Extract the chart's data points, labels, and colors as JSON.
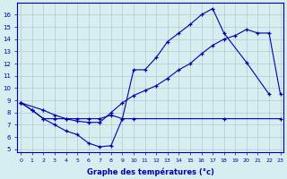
{
  "line1_x": [
    0,
    1,
    2,
    3,
    4,
    5,
    6,
    7,
    8,
    9,
    10,
    11,
    12,
    13,
    14,
    15,
    16,
    17,
    18,
    20,
    22
  ],
  "line1_y": [
    8.8,
    8.2,
    7.5,
    7.0,
    6.5,
    6.2,
    5.5,
    5.2,
    5.3,
    7.5,
    11.5,
    11.5,
    12.5,
    13.8,
    14.5,
    15.2,
    16.0,
    16.5,
    14.5,
    12.1,
    9.5
  ],
  "line2_x": [
    0,
    2,
    3,
    4,
    5,
    6,
    7,
    8,
    9,
    10,
    11,
    12,
    13,
    14,
    15,
    16,
    17,
    18,
    19,
    20,
    21,
    22,
    23
  ],
  "line2_y": [
    8.8,
    8.2,
    7.8,
    7.5,
    7.3,
    7.2,
    7.2,
    8.0,
    8.8,
    9.4,
    9.8,
    10.2,
    10.8,
    11.5,
    12.0,
    12.8,
    13.5,
    14.0,
    14.3,
    14.8,
    14.5,
    14.5,
    9.5
  ],
  "line3_x": [
    0,
    1,
    2,
    3,
    4,
    5,
    6,
    7,
    8,
    9,
    10,
    18,
    23
  ],
  "line3_y": [
    8.8,
    8.2,
    7.5,
    7.5,
    7.5,
    7.5,
    7.5,
    7.5,
    7.8,
    7.5,
    7.5,
    7.5,
    7.5
  ],
  "bg_color": "#d6eef0",
  "line_color": "#0000aa",
  "grid_color": "#aacccc",
  "xlabel": "Graphe des températures (°c)",
  "ylabel_ticks": [
    5,
    6,
    7,
    8,
    9,
    10,
    11,
    12,
    13,
    14,
    15,
    16
  ],
  "ylim": [
    4.8,
    17.0
  ],
  "xlim": [
    -0.3,
    23.3
  ],
  "xticks": [
    0,
    1,
    2,
    3,
    4,
    5,
    6,
    7,
    8,
    9,
    10,
    11,
    12,
    13,
    14,
    15,
    16,
    17,
    18,
    19,
    20,
    21,
    22,
    23
  ]
}
